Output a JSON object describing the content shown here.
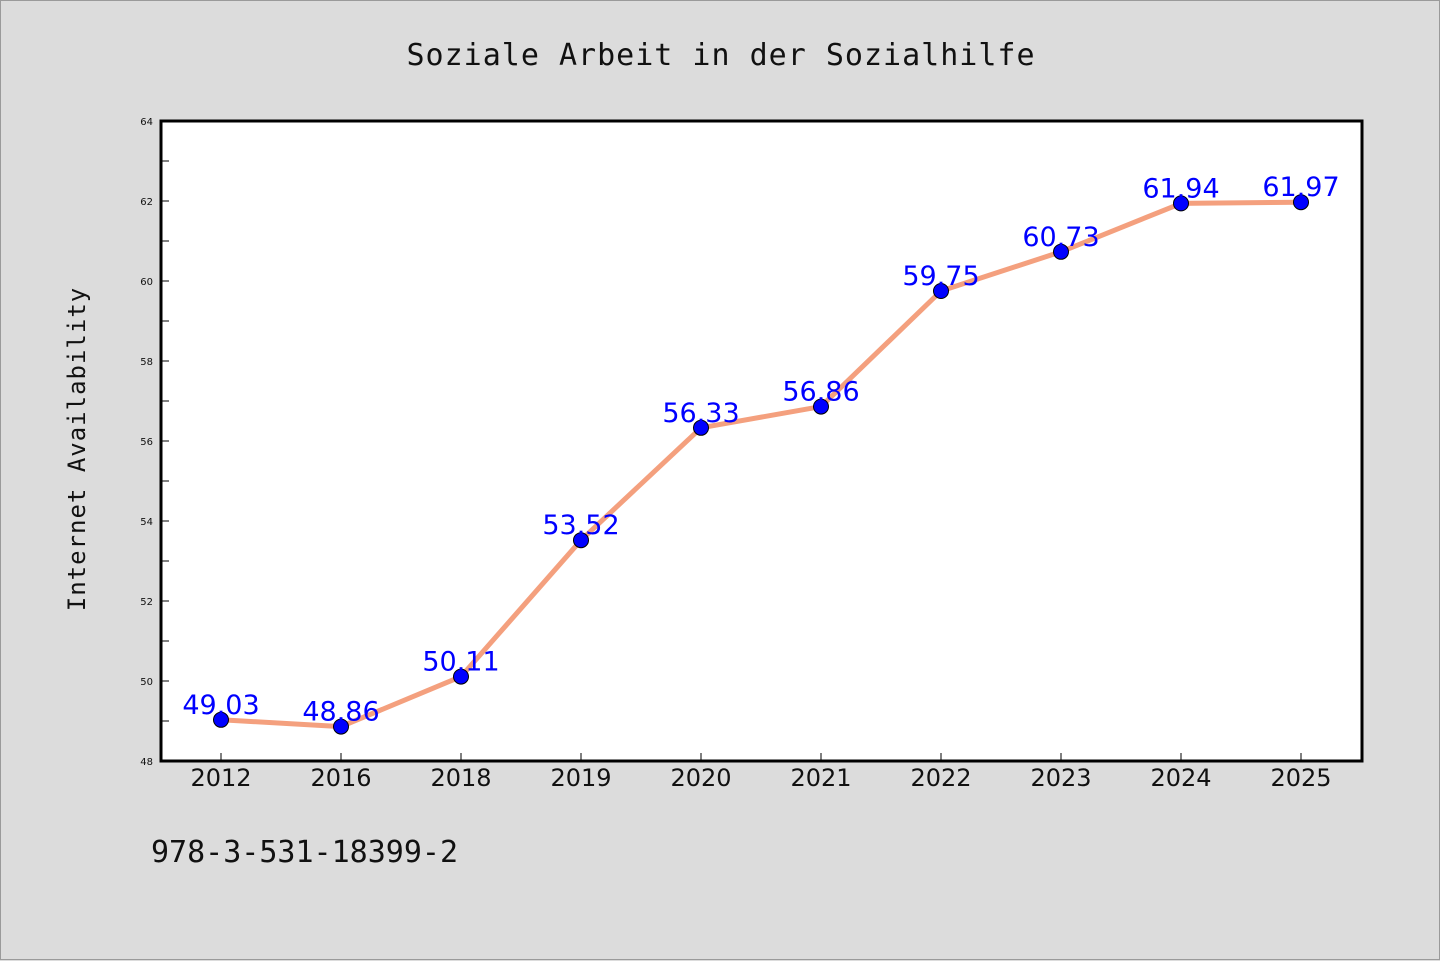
{
  "chart_data": {
    "type": "line",
    "title": "Soziale Arbeit in der Sozialhilfe",
    "xlabel": "",
    "ylabel": "Internet Availability",
    "categories": [
      "2012",
      "2016",
      "2018",
      "2019",
      "2020",
      "2021",
      "2022",
      "2023",
      "2024",
      "2025"
    ],
    "values": [
      49.03,
      48.86,
      50.11,
      53.52,
      56.33,
      56.86,
      59.75,
      60.73,
      61.94,
      61.97
    ],
    "data_labels": [
      "49.03",
      "48.86",
      "50.11",
      "53.52",
      "56.33",
      "56.86",
      "59.75",
      "60.73",
      "61.94",
      "61.97"
    ],
    "ylim": [
      48,
      64
    ],
    "y_ticks": [
      "48",
      "50",
      "52",
      "54",
      "56",
      "58",
      "60",
      "62",
      "64"
    ],
    "grid": false,
    "legend": "none",
    "colors": {
      "line": "#f4a07e",
      "marker": "#0000ff",
      "label": "#0000ff",
      "background": "#dcdcdc",
      "plot_background": "#ffffff"
    }
  },
  "footer": {
    "code": "978-3-531-18399-2"
  }
}
